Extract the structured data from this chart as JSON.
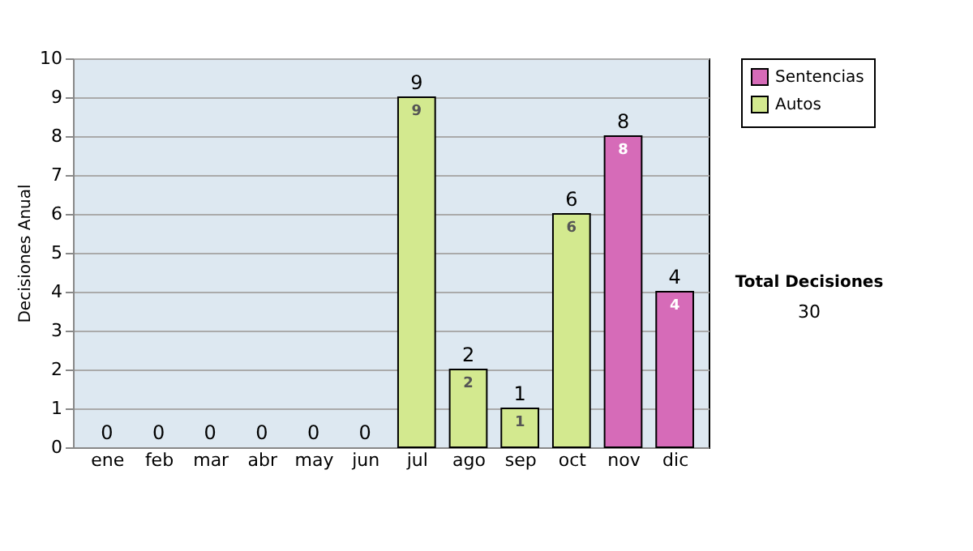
{
  "chart_data": {
    "type": "bar",
    "stacked": true,
    "ylabel": "Decisiones Anual",
    "categories": [
      "ene",
      "feb",
      "mar",
      "abr",
      "may",
      "jun",
      "jul",
      "ago",
      "sep",
      "oct",
      "nov",
      "dic"
    ],
    "series": [
      {
        "name": "Sentencias",
        "color": "#d66bb8",
        "values": [
          null,
          null,
          null,
          null,
          null,
          null,
          null,
          null,
          null,
          null,
          8,
          4
        ]
      },
      {
        "name": "Autos",
        "color": "#d3e98f",
        "values": [
          null,
          null,
          null,
          null,
          null,
          null,
          9,
          2,
          1,
          6,
          null,
          null
        ]
      }
    ],
    "totals": [
      "0",
      "0",
      "0",
      "0",
      "0",
      "0",
      "9",
      "2",
      "1",
      "6",
      "8",
      "4"
    ],
    "data_labels": true,
    "ylim": [
      0,
      10
    ],
    "yticks": [
      0,
      1,
      2,
      3,
      4,
      5,
      6,
      7,
      8,
      9,
      10
    ],
    "grid": "y",
    "legend": "right",
    "annotations": [
      "Total Decisiones",
      "30"
    ]
  }
}
